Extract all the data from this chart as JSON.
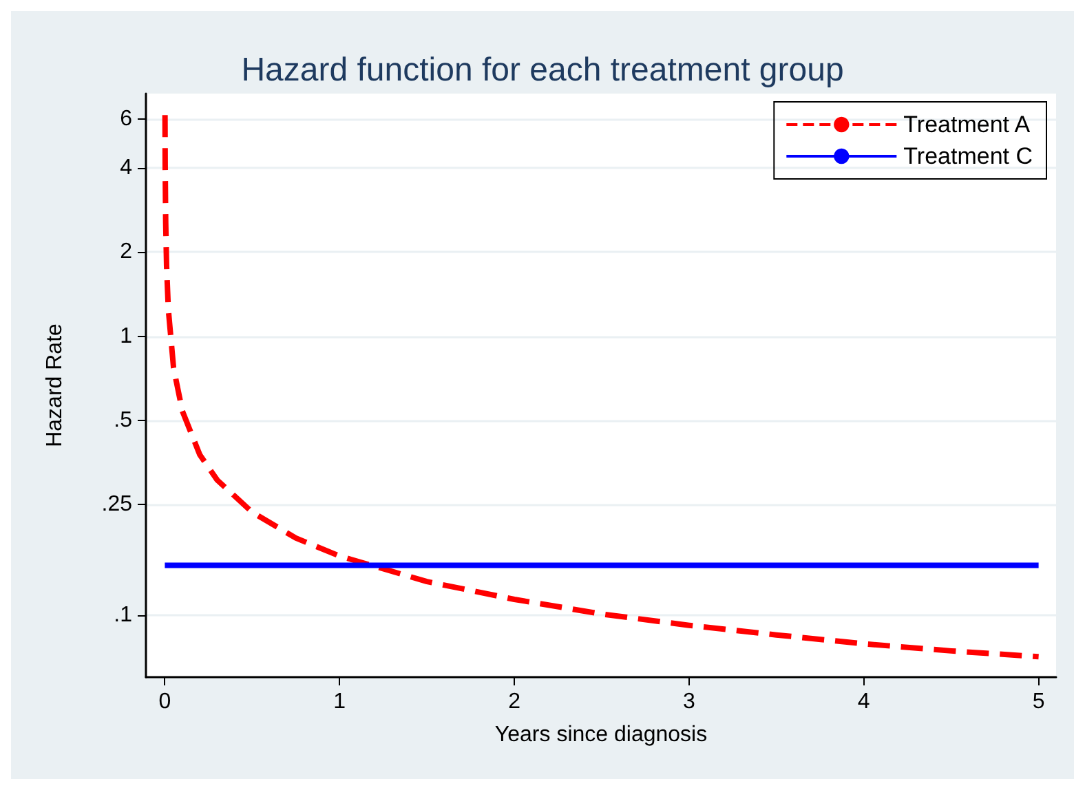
{
  "chart_data": {
    "type": "line",
    "title": "Hazard function for each treatment group",
    "xlabel": "Years since diagnosis",
    "ylabel": "Hazard Rate",
    "series": [
      {
        "name": "Treatment A",
        "color": "#ff0000",
        "line_style": "dashed",
        "x": [
          0.001,
          0.002,
          0.005,
          0.01,
          0.02,
          0.05,
          0.1,
          0.2,
          0.3,
          0.5,
          0.75,
          1,
          1.5,
          2,
          2.5,
          3,
          3.5,
          4,
          4.5,
          5
        ],
        "values": [
          6.2,
          4.13,
          2.56,
          1.79,
          1.25,
          0.77,
          0.54,
          0.376,
          0.305,
          0.234,
          0.189,
          0.163,
          0.132,
          0.114,
          0.101,
          0.092,
          0.085,
          0.079,
          0.0745,
          0.071
        ]
      },
      {
        "name": "Treatment C",
        "color": "#0000ff",
        "line_style": "solid",
        "x": [
          0,
          5
        ],
        "values": [
          0.151,
          0.151
        ]
      }
    ],
    "log": "y",
    "xlim": [
      -0.108,
      5.1
    ],
    "xticks": [
      0,
      1,
      2,
      3,
      4,
      5
    ],
    "ylim": [
      0.06,
      7.4
    ],
    "yticks": [
      {
        "value": 0.1,
        "label": ".1"
      },
      {
        "value": 0.25,
        "label": ".25"
      },
      {
        "value": 0.5,
        "label": ".5"
      },
      1,
      2,
      4,
      6
    ],
    "grid": "y",
    "legend": "top right",
    "marker": "none"
  }
}
